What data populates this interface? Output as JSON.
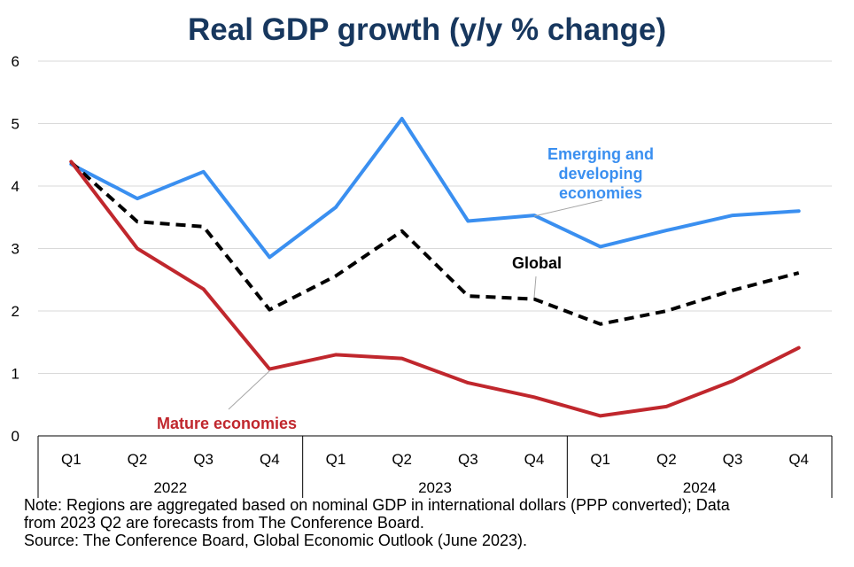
{
  "title": "Real GDP growth (y/y % change)",
  "note_line1": "Note: Regions are aggregated based on nominal GDP in international dollars (PPP converted); Data",
  "note_line2": "from 2023 Q2 are forecasts from The Conference Board.",
  "source": "Source: The Conference Board, Global Economic Outlook (June 2023).",
  "chart_data": {
    "type": "line",
    "title": "Real GDP growth (y/y % change)",
    "ylim": [
      0,
      6
    ],
    "yticks": [
      "0",
      "1",
      "2",
      "3",
      "4",
      "5",
      "6"
    ],
    "grid": true,
    "categories": [
      "Q1",
      "Q2",
      "Q3",
      "Q4",
      "Q1",
      "Q2",
      "Q3",
      "Q4",
      "Q1",
      "Q2",
      "Q3",
      "Q4"
    ],
    "groups": [
      {
        "label": "2022",
        "span": 4
      },
      {
        "label": "2023",
        "span": 4
      },
      {
        "label": "2024",
        "span": 4
      }
    ],
    "series": [
      {
        "name": "Emerging and developing economies",
        "label_lines": [
          "Emerging and",
          "developing",
          "economies"
        ],
        "color": "#3a8ff0",
        "style": "solid",
        "values": [
          4.35,
          3.8,
          4.23,
          2.86,
          3.66,
          5.08,
          3.44,
          3.53,
          3.03,
          3.29,
          3.53,
          3.6
        ]
      },
      {
        "name": "Global",
        "label_lines": [
          "Global"
        ],
        "color": "#000000",
        "style": "dashed",
        "values": [
          4.38,
          3.43,
          3.35,
          2.02,
          2.56,
          3.28,
          2.24,
          2.19,
          1.79,
          2.0,
          2.33,
          2.61
        ]
      },
      {
        "name": "Mature economies",
        "label_lines": [
          "Mature economies"
        ],
        "color": "#c0272d",
        "style": "solid",
        "values": [
          4.39,
          3.0,
          2.35,
          1.07,
          1.3,
          1.24,
          0.85,
          0.62,
          0.32,
          0.47,
          0.88,
          1.41
        ]
      }
    ]
  }
}
